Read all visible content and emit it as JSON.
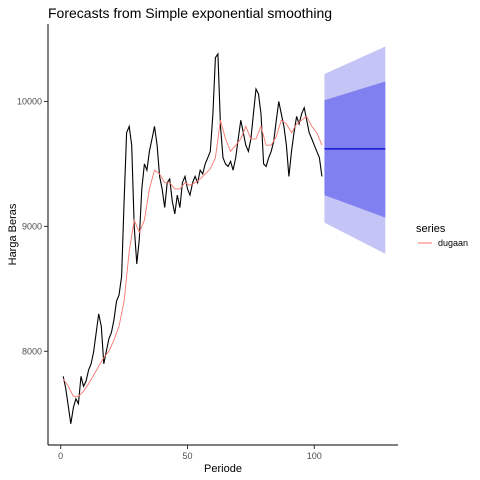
{
  "chart_data": {
    "type": "line",
    "title": "Forecasts from Simple exponential smoothing",
    "xlabel": "Periode",
    "ylabel": "Harga Beras",
    "xlim": [
      -5,
      133
    ],
    "ylim": [
      7250,
      10620
    ],
    "xticks": [
      0,
      50,
      100
    ],
    "yticks": [
      8000,
      9000,
      10000
    ],
    "grid": false,
    "legend": {
      "title": "series",
      "position": "right",
      "entries": [
        {
          "name": "dugaan",
          "color": "#f8766d"
        }
      ]
    },
    "colors": {
      "actual": "#000000",
      "fitted": "#f8766d",
      "forecast": "#0000cd",
      "pi80": "#8080f0",
      "pi95": "#c4c4f6"
    },
    "series": [
      {
        "name": "",
        "x": [
          1,
          2,
          3,
          4,
          5,
          6,
          7,
          8,
          9,
          10,
          11,
          12,
          13,
          14,
          15,
          16,
          17,
          18,
          19,
          20,
          21,
          22,
          23,
          24,
          25,
          26,
          27,
          28,
          29,
          30,
          31,
          32,
          33,
          34,
          35,
          36,
          37,
          38,
          39,
          40,
          41,
          42,
          43,
          44,
          45,
          46,
          47,
          48,
          49,
          50,
          51,
          52,
          53,
          54,
          55,
          56,
          57,
          58,
          59,
          60,
          61,
          62,
          63,
          64,
          65,
          66,
          67,
          68,
          69,
          70,
          71,
          72,
          73,
          74,
          75,
          76,
          77,
          78,
          79,
          80,
          81,
          82,
          83,
          84,
          85,
          86,
          87,
          88,
          89,
          90,
          91,
          92,
          93,
          94,
          95,
          96,
          97,
          98,
          99,
          100,
          101,
          102,
          103
        ],
        "y": [
          7800,
          7700,
          7560,
          7420,
          7550,
          7620,
          7580,
          7800,
          7720,
          7760,
          7850,
          7900,
          8000,
          8150,
          8300,
          8200,
          7900,
          8000,
          8100,
          8150,
          8250,
          8400,
          8450,
          8600,
          9200,
          9750,
          9800,
          9650,
          9000,
          8700,
          8900,
          9300,
          9500,
          9450,
          9600,
          9700,
          9800,
          9650,
          9400,
          9300,
          9150,
          9350,
          9380,
          9200,
          9100,
          9250,
          9150,
          9350,
          9400,
          9300,
          9250,
          9350,
          9400,
          9350,
          9450,
          9420,
          9500,
          9550,
          9600,
          9900,
          10350,
          10380,
          9800,
          9550,
          9500,
          9480,
          9520,
          9450,
          9550,
          9700,
          9850,
          9750,
          9650,
          9600,
          9700,
          9900,
          10100,
          10060,
          9900,
          9500,
          9480,
          9550,
          9600,
          9680,
          9850,
          10000,
          9900,
          9800,
          9650,
          9400,
          9600,
          9750,
          9880,
          9820,
          9900,
          9950,
          9850,
          9750,
          9700,
          9650,
          9600,
          9550,
          9400
        ]
      },
      {
        "name": "dugaan",
        "x": [
          1,
          3,
          5,
          7,
          9,
          11,
          13,
          15,
          17,
          19,
          21,
          23,
          25,
          27,
          29,
          31,
          33,
          35,
          37,
          39,
          41,
          43,
          45,
          47,
          49,
          51,
          53,
          55,
          57,
          59,
          61,
          63,
          65,
          67,
          69,
          71,
          73,
          75,
          77,
          79,
          81,
          83,
          85,
          87,
          89,
          91,
          93,
          95,
          97,
          99,
          101,
          103
        ],
        "y": [
          7780,
          7720,
          7640,
          7640,
          7680,
          7740,
          7810,
          7880,
          7950,
          8000,
          8090,
          8200,
          8400,
          8800,
          9050,
          8950,
          9050,
          9300,
          9450,
          9420,
          9350,
          9350,
          9300,
          9300,
          9350,
          9330,
          9350,
          9380,
          9420,
          9460,
          9550,
          9850,
          9700,
          9600,
          9650,
          9700,
          9800,
          9700,
          9700,
          9800,
          9650,
          9650,
          9720,
          9850,
          9820,
          9750,
          9820,
          9850,
          9880,
          9800,
          9750,
          9650
        ]
      },
      {
        "name": "",
        "x": [
          104,
          128
        ],
        "y": [
          9620,
          9620
        ]
      }
    ],
    "intervals": {
      "x": [
        104,
        128
      ],
      "lo80_start": 9250,
      "hi80_start": 10010,
      "lo80_end": 9070,
      "hi80_end": 10160,
      "lo95_start": 9030,
      "hi95_start": 10220,
      "lo95_end": 8780,
      "hi95_end": 10440
    }
  }
}
